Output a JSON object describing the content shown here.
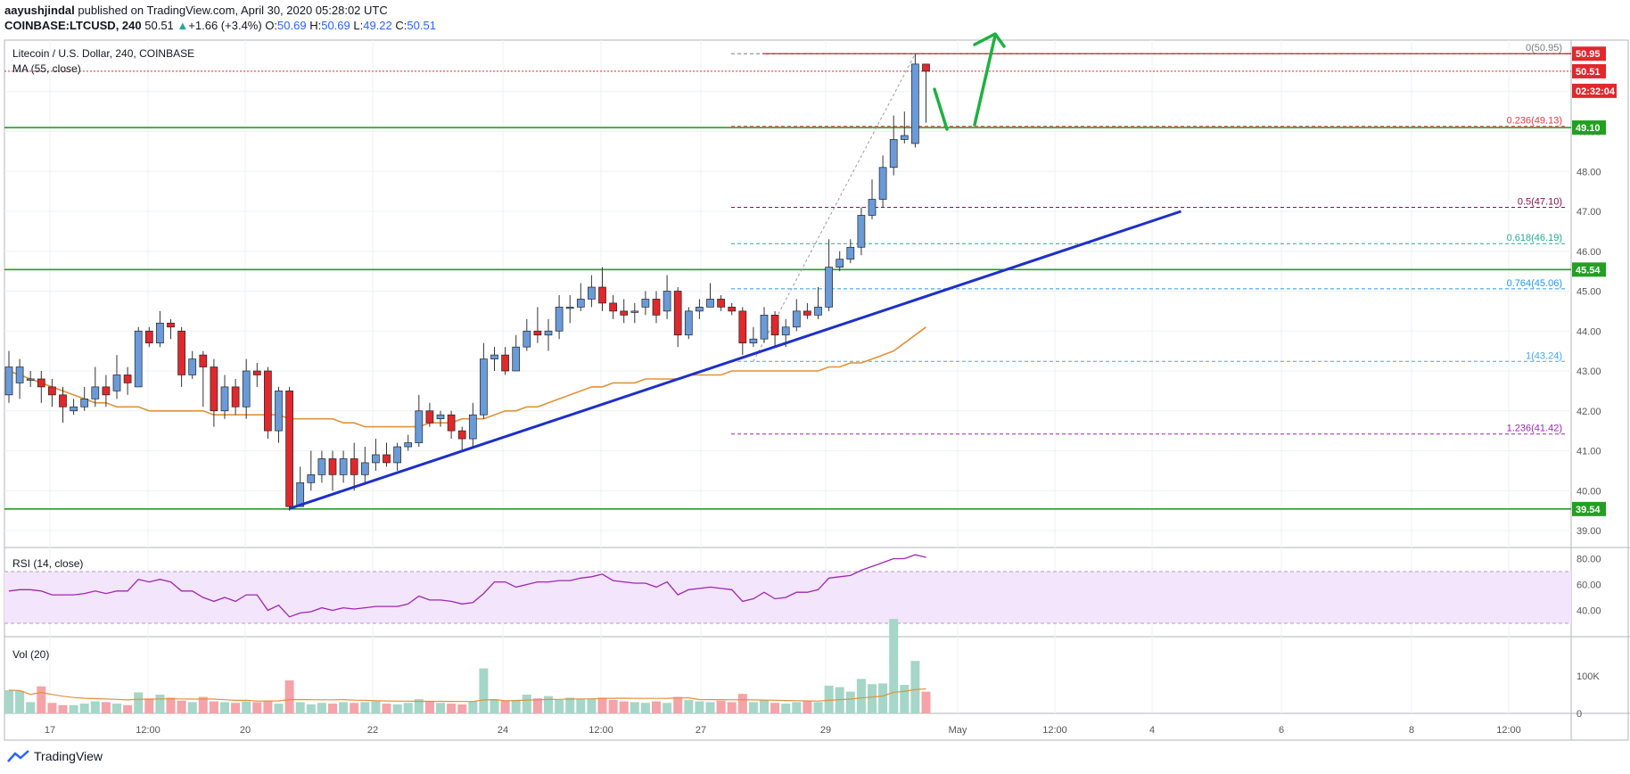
{
  "header": {
    "author": "aayushjindal",
    "published_text": "published on TradingView.com, April 30, 2020 05:28:02 UTC",
    "symbol": "COINBASE:LTCUSD, 240",
    "last": "50.51",
    "change": "+1.66 (+3.4%)",
    "change_arrow": "▲",
    "o_label": "O:",
    "o": "50.69",
    "h_label": "H:",
    "h": "50.69",
    "l_label": "L:",
    "l": "49.22",
    "c_label": "C:",
    "c": "50.51"
  },
  "legend": {
    "title": "Litecoin / U.S. Dollar, 240, COINBASE",
    "ma": "MA (55, close)",
    "rsi": "RSI (14, close)",
    "vol": "Vol (20)"
  },
  "footer": {
    "brand": "TradingView"
  },
  "colors": {
    "up": "#26a69a",
    "up_fill": "#6a9bd8",
    "down_fill": "#e0282d",
    "ma": "#e1913a",
    "trend": "#1e2fc8",
    "support": "#22a022",
    "resistance": "#e0282d",
    "rsi": "#9c27b0",
    "rsi_band": "#f3e5fb",
    "arrow": "#1fb040"
  },
  "chart_data": {
    "type": "candlestick",
    "title": "Litecoin / U.S. Dollar, 240, COINBASE",
    "ylim": [
      38.8,
      51.5
    ],
    "y_ticks": [
      "39.00",
      "40.00",
      "41.00",
      "42.00",
      "43.00",
      "44.00",
      "45.00",
      "46.00",
      "47.00",
      "48.00",
      "49.00",
      "50.00"
    ],
    "x_ticks": [
      "17",
      "12:00",
      "20",
      "22",
      "24",
      "12:00",
      "27",
      "29",
      "May",
      "12:00",
      "4",
      "6",
      "8",
      "12:00"
    ],
    "candles": [
      [
        42.4,
        43.1,
        43.5,
        42.2
      ],
      [
        42.7,
        43.1,
        43.3,
        42.3
      ],
      [
        42.8,
        42.8,
        43.0,
        42.6
      ],
      [
        42.8,
        42.6,
        43.0,
        42.2
      ],
      [
        42.6,
        42.4,
        42.8,
        42.1
      ],
      [
        42.4,
        42.1,
        42.6,
        41.7
      ],
      [
        42.0,
        42.1,
        42.3,
        41.9
      ],
      [
        42.1,
        42.3,
        42.6,
        42.0
      ],
      [
        42.3,
        42.6,
        43.1,
        42.1
      ],
      [
        42.6,
        42.4,
        42.9,
        42.1
      ],
      [
        42.5,
        42.9,
        43.4,
        42.3
      ],
      [
        42.9,
        42.7,
        43.1,
        42.4
      ],
      [
        42.6,
        44.0,
        44.1,
        42.6
      ],
      [
        44.0,
        43.7,
        44.1,
        43.6
      ],
      [
        43.7,
        44.2,
        44.5,
        43.6
      ],
      [
        44.2,
        44.1,
        44.3,
        43.8
      ],
      [
        44.0,
        42.9,
        44.1,
        42.6
      ],
      [
        42.9,
        43.3,
        43.5,
        42.8
      ],
      [
        43.4,
        43.1,
        43.5,
        42.1
      ],
      [
        43.1,
        42.0,
        43.3,
        41.6
      ],
      [
        42.0,
        42.6,
        42.9,
        41.8
      ],
      [
        42.6,
        42.1,
        42.8,
        41.9
      ],
      [
        42.1,
        43.0,
        43.3,
        41.8
      ],
      [
        43.0,
        42.9,
        43.2,
        42.6
      ],
      [
        43.0,
        41.5,
        43.1,
        41.3
      ],
      [
        41.5,
        42.5,
        42.6,
        41.2
      ],
      [
        42.5,
        39.6,
        42.6,
        39.5
      ],
      [
        39.6,
        40.2,
        40.6,
        39.7
      ],
      [
        40.2,
        40.4,
        41.0,
        40.0
      ],
      [
        40.4,
        40.8,
        41.0,
        40.2
      ],
      [
        40.8,
        40.4,
        41.0,
        40.0
      ],
      [
        40.4,
        40.8,
        41.0,
        40.2
      ],
      [
        40.8,
        40.4,
        41.2,
        40.0
      ],
      [
        40.4,
        40.7,
        41.1,
        40.2
      ],
      [
        40.7,
        40.9,
        41.3,
        40.5
      ],
      [
        40.9,
        40.7,
        41.2,
        40.6
      ],
      [
        40.7,
        41.1,
        41.2,
        40.5
      ],
      [
        41.1,
        41.2,
        41.4,
        41.0
      ],
      [
        41.2,
        42.0,
        42.4,
        41.1
      ],
      [
        42.0,
        41.7,
        42.2,
        41.6
      ],
      [
        41.8,
        41.9,
        42.0,
        41.6
      ],
      [
        41.9,
        41.5,
        42.0,
        41.3
      ],
      [
        41.5,
        41.3,
        41.6,
        41.0
      ],
      [
        41.3,
        41.9,
        42.2,
        41.1
      ],
      [
        41.9,
        43.3,
        43.7,
        41.8
      ],
      [
        43.3,
        43.4,
        43.6,
        43.0
      ],
      [
        43.4,
        43.0,
        43.6,
        42.9
      ],
      [
        43.0,
        43.6,
        43.9,
        43.0
      ],
      [
        43.6,
        44.0,
        44.3,
        43.5
      ],
      [
        44.0,
        43.9,
        44.6,
        43.7
      ],
      [
        43.9,
        44.0,
        44.3,
        43.5
      ],
      [
        44.0,
        44.6,
        44.9,
        43.8
      ],
      [
        44.6,
        44.6,
        44.9,
        44.2
      ],
      [
        44.6,
        44.8,
        45.2,
        44.5
      ],
      [
        44.8,
        45.1,
        45.4,
        44.6
      ],
      [
        45.1,
        44.7,
        45.6,
        44.5
      ],
      [
        44.7,
        44.5,
        44.9,
        44.3
      ],
      [
        44.5,
        44.4,
        44.8,
        44.2
      ],
      [
        44.5,
        44.5,
        44.7,
        44.2
      ],
      [
        44.6,
        44.8,
        45.0,
        44.4
      ],
      [
        44.8,
        44.4,
        45.0,
        44.2
      ],
      [
        44.5,
        45.0,
        45.4,
        44.3
      ],
      [
        45.0,
        43.9,
        45.1,
        43.6
      ],
      [
        43.9,
        44.5,
        44.6,
        43.8
      ],
      [
        44.5,
        44.6,
        44.8,
        44.3
      ],
      [
        44.6,
        44.8,
        45.2,
        44.6
      ],
      [
        44.8,
        44.6,
        44.9,
        44.5
      ],
      [
        44.6,
        44.5,
        44.7,
        44.4
      ],
      [
        44.5,
        43.7,
        44.6,
        43.4
      ],
      [
        43.7,
        43.8,
        44.1,
        43.6
      ],
      [
        43.8,
        44.4,
        44.6,
        43.7
      ],
      [
        44.4,
        43.9,
        44.5,
        43.6
      ],
      [
        43.9,
        44.1,
        44.3,
        43.6
      ],
      [
        44.1,
        44.5,
        44.8,
        44.0
      ],
      [
        44.5,
        44.4,
        44.7,
        44.3
      ],
      [
        44.4,
        44.6,
        45.1,
        44.3
      ],
      [
        44.6,
        45.6,
        46.3,
        44.5
      ],
      [
        45.6,
        45.8,
        46.0,
        45.5
      ],
      [
        45.8,
        46.1,
        46.3,
        45.7
      ],
      [
        46.1,
        46.9,
        47.1,
        45.9
      ],
      [
        46.9,
        47.3,
        47.8,
        46.8
      ],
      [
        47.3,
        48.1,
        48.4,
        47.1
      ],
      [
        48.1,
        48.8,
        49.4,
        47.9
      ],
      [
        48.8,
        48.9,
        49.5,
        48.7
      ],
      [
        48.7,
        50.69,
        50.95,
        48.6
      ],
      [
        50.69,
        50.51,
        50.69,
        49.22
      ]
    ],
    "ma55": [
      43.0,
      42.9,
      42.8,
      42.7,
      42.6,
      42.5,
      42.4,
      42.3,
      42.2,
      42.2,
      42.1,
      42.1,
      42.1,
      42.0,
      42.0,
      42.0,
      42.0,
      42.0,
      42.0,
      41.9,
      41.9,
      41.9,
      41.9,
      41.9,
      41.9,
      41.9,
      41.8,
      41.8,
      41.8,
      41.8,
      41.8,
      41.7,
      41.7,
      41.6,
      41.6,
      41.6,
      41.6,
      41.6,
      41.6,
      41.7,
      41.7,
      41.7,
      41.8,
      41.8,
      41.8,
      41.9,
      42.0,
      42.0,
      42.1,
      42.1,
      42.2,
      42.3,
      42.4,
      42.5,
      42.6,
      42.6,
      42.7,
      42.7,
      42.7,
      42.8,
      42.8,
      42.8,
      42.8,
      42.9,
      42.9,
      42.9,
      42.9,
      43.0,
      43.0,
      43.0,
      43.0,
      43.0,
      43.0,
      43.0,
      43.0,
      43.0,
      43.1,
      43.1,
      43.2,
      43.2,
      43.3,
      43.4,
      43.5,
      43.7,
      43.9,
      44.1
    ],
    "rsi": [
      55,
      56,
      56,
      55,
      52,
      52,
      52,
      53,
      55,
      53,
      55,
      55,
      64,
      62,
      64,
      62,
      55,
      55,
      50,
      47,
      50,
      47,
      52,
      52,
      40,
      44,
      35,
      38,
      39,
      42,
      40,
      42,
      41,
      42,
      43,
      43,
      43,
      45,
      51,
      48,
      48,
      47,
      45,
      46,
      53,
      62,
      62,
      58,
      60,
      62,
      62,
      63,
      63,
      65,
      66,
      68,
      63,
      62,
      61,
      61,
      58,
      62,
      52,
      56,
      57,
      58,
      57,
      56,
      47,
      49,
      54,
      49,
      50,
      54,
      54,
      56,
      65,
      66,
      67,
      71,
      74,
      77,
      80,
      80,
      83,
      81
    ],
    "volume": [
      62,
      60,
      30,
      72,
      28,
      22,
      22,
      26,
      32,
      30,
      26,
      22,
      56,
      40,
      50,
      42,
      34,
      30,
      44,
      32,
      30,
      28,
      32,
      30,
      34,
      26,
      88,
      30,
      24,
      28,
      26,
      30,
      28,
      30,
      32,
      26,
      24,
      28,
      38,
      32,
      28,
      26,
      24,
      32,
      120,
      38,
      34,
      36,
      50,
      40,
      46,
      36,
      42,
      38,
      40,
      42,
      36,
      32,
      30,
      28,
      32,
      28,
      44,
      36,
      32,
      30,
      34,
      30,
      52,
      30,
      36,
      28,
      26,
      30,
      32,
      30,
      74,
      70,
      58,
      92,
      78,
      80,
      252,
      76,
      140,
      58
    ],
    "fib_levels": [
      {
        "ratio": "0",
        "label": "0(50.95)",
        "value": 50.95,
        "color": "#787b86"
      },
      {
        "ratio": "0.236",
        "label": "0.236(49.13)",
        "value": 49.13,
        "color": "#f23645"
      },
      {
        "ratio": "0.5",
        "label": "0.5(47.10)",
        "value": 47.1,
        "color": "#880e4f"
      },
      {
        "ratio": "0.618",
        "label": "0.618(46.19)",
        "value": 46.19,
        "color": "#22ab94"
      },
      {
        "ratio": "0.764",
        "label": "0.764(45.06)",
        "value": 45.06,
        "color": "#2196f3"
      },
      {
        "ratio": "1",
        "label": "1(43.24)",
        "value": 43.24,
        "color": "#42a5f5"
      },
      {
        "ratio": "1.236",
        "label": "1.236(41.42)",
        "value": 41.42,
        "color": "#9c27b0"
      }
    ],
    "horizontal_lines": [
      {
        "value": 50.95,
        "color": "#e0282d",
        "style": "solid"
      },
      {
        "value": 49.1,
        "color": "#22a022",
        "style": "solid"
      },
      {
        "value": 45.54,
        "color": "#22a022",
        "style": "solid"
      },
      {
        "value": 39.54,
        "color": "#22a022",
        "style": "solid"
      },
      {
        "value": 50.51,
        "color": "#e0282d",
        "style": "dotted"
      }
    ],
    "price_labels": [
      {
        "text": "50.95",
        "value": 50.95,
        "color": "#e0282d"
      },
      {
        "text": "50.51",
        "value": 50.51,
        "color": "#e0282d"
      },
      {
        "text": "02:32:04",
        "value": 50.02,
        "color": "#e0282d"
      },
      {
        "text": "49.10",
        "value": 49.1,
        "color": "#22a022"
      },
      {
        "text": "45.54",
        "value": 45.54,
        "color": "#22a022"
      },
      {
        "text": "39.54",
        "value": 39.54,
        "color": "#22a022"
      }
    ],
    "trendline": {
      "from": [
        26,
        39.55
      ],
      "to": [
        105,
        47.0
      ]
    },
    "rsi_ticks": [
      "40.00",
      "60.00",
      "80.00"
    ],
    "rsi_band": [
      30,
      70
    ],
    "rsi_ylim": [
      25,
      90
    ],
    "vol_ticks": [
      "0",
      "100K"
    ],
    "vol_ylim": [
      0,
      260
    ]
  }
}
